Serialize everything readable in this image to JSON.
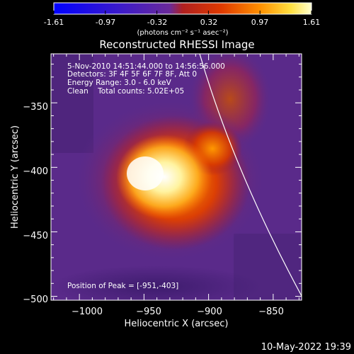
{
  "colorbar": {
    "ticks": [
      "-1.61",
      "-0.97",
      "-0.32",
      "0.32",
      "0.97",
      "1.61"
    ],
    "unit_label": "(photons cm⁻² s⁻¹ asec⁻²)"
  },
  "chart_data": {
    "type": "heatmap",
    "title": "Reconstructed RHESSI Image",
    "xlabel": "Heliocentric X (arcsec)",
    "ylabel": "Heliocentric Y (arcsec)",
    "xlim": [
      -1022,
      -828
    ],
    "ylim": [
      -503,
      -312
    ],
    "xticks": [
      -1000,
      -950,
      -900,
      -850
    ],
    "yticks": [
      -350,
      -400,
      -450,
      -500
    ],
    "xtick_labels": [
      "−1000",
      "−950",
      "−900",
      "−850"
    ],
    "ytick_labels": [
      "−350",
      "−400",
      "−450",
      "−500"
    ],
    "clim": [
      -1.61,
      1.61
    ],
    "colormap": "red-temperature",
    "peak": [
      -951,
      -403
    ],
    "annotations": [
      "5-Nov-2010 14:51:44.000 to 14:56:56.000",
      "Detectors: 3F 4F 5F 6F 7F 8F, Att 0",
      "Energy Range: 3.0 - 6.0 keV",
      "Clean    Total counts: 5.02E+05"
    ],
    "peak_label": "Position of Peak = [-951,-403]"
  },
  "footer": {
    "timestamp": "10-May-2022 19:39"
  },
  "colors": {
    "background": "#000000",
    "foreground": "#ffffff",
    "limb": "#ffffff"
  }
}
